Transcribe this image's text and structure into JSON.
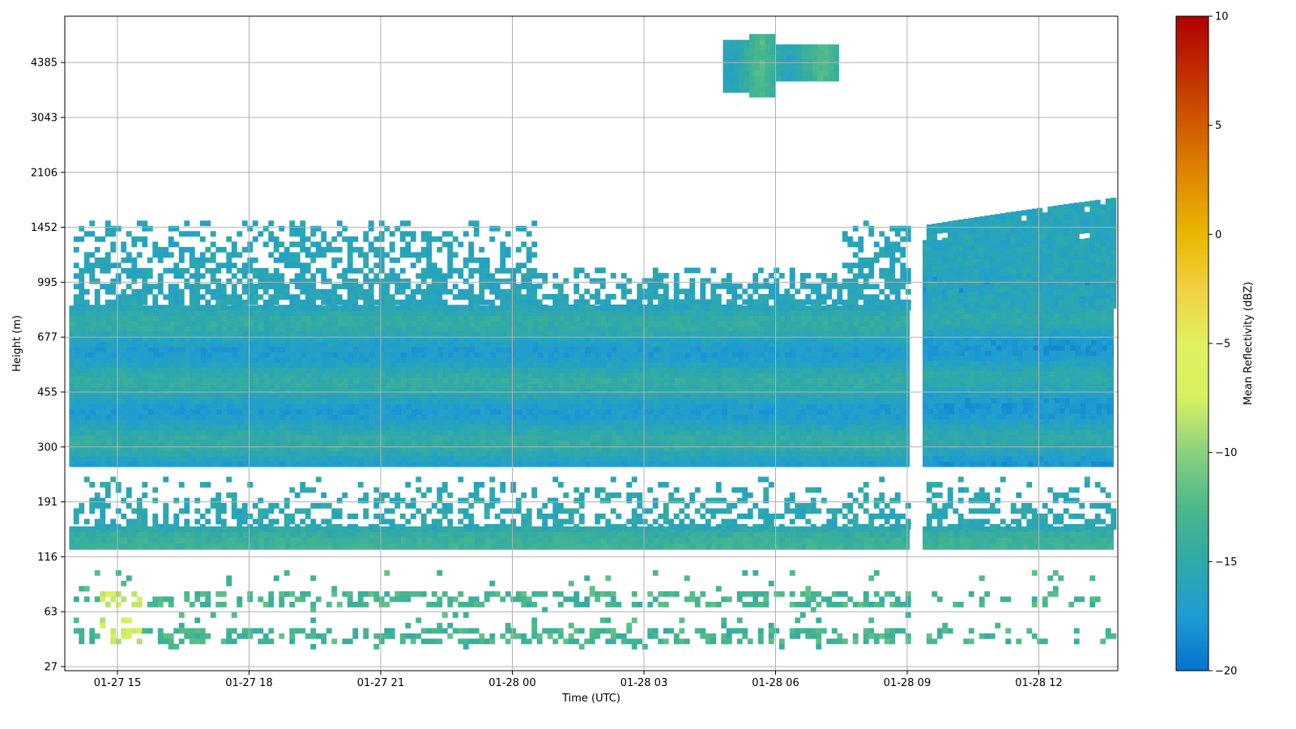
{
  "chart_data": {
    "type": "heatmap",
    "title": "",
    "xlabel": "Time (UTC)",
    "ylabel": "Height (m)",
    "x_ticks": [
      "01-27 15",
      "01-27 18",
      "01-27 21",
      "01-28 00",
      "01-28 03",
      "01-28 06",
      "01-28 09",
      "01-28 12"
    ],
    "x_tick_hours": [
      15,
      18,
      21,
      24,
      27,
      30,
      33,
      36
    ],
    "xlim_hours": [
      13.8,
      37.8
    ],
    "y_ticks": [
      "27",
      "63",
      "116",
      "191",
      "300",
      "455",
      "677",
      "995",
      "1452",
      "2106",
      "3043",
      "4385"
    ],
    "grid": true,
    "colorbar": {
      "label": "Mean Reflectivity (dBZ)",
      "range": [
        -20,
        10
      ],
      "ticks": [
        "10",
        "5",
        "0",
        "−5",
        "−10",
        "−15",
        "−20"
      ],
      "tick_values": [
        10,
        5,
        0,
        -5,
        -10,
        -15,
        -20
      ],
      "colormap": [
        "#0571d0",
        "#1f9dd2",
        "#2fa9a8",
        "#4bb88a",
        "#8ad080",
        "#d8f060",
        "#e0f060",
        "#f0d040",
        "#e8b800",
        "#e08a00",
        "#d05c00",
        "#c02c00",
        "#b00000"
      ]
    },
    "layers": [
      {
        "name": "main-cloud-layer-a",
        "t_start": 13.9,
        "t_end": 33.05,
        "h_bottom": 255,
        "h_top": 845,
        "dbz": -16
      },
      {
        "name": "main-cloud-layer-b",
        "t_start": 33.35,
        "t_end": 37.7,
        "h_bottom": 255,
        "h_top": 1330,
        "dbz": -16.5
      },
      {
        "name": "low-layer-a",
        "t_start": 13.9,
        "t_end": 33.05,
        "h_bottom": 124,
        "h_top": 153,
        "dbz": -15
      },
      {
        "name": "low-layer-b",
        "t_start": 33.35,
        "t_end": 37.7,
        "h_bottom": 124,
        "h_top": 153,
        "dbz": -15
      },
      {
        "name": "elevated-cell",
        "t_start": 28.8,
        "t_end": 31.4,
        "h_bottom": 3800,
        "h_top": 5000,
        "dbz": -14
      },
      {
        "name": "near-surface-echo",
        "t_start": 14.5,
        "t_end": 15.5,
        "h_bottom": 40,
        "h_top": 85,
        "dbz": -8
      }
    ]
  }
}
